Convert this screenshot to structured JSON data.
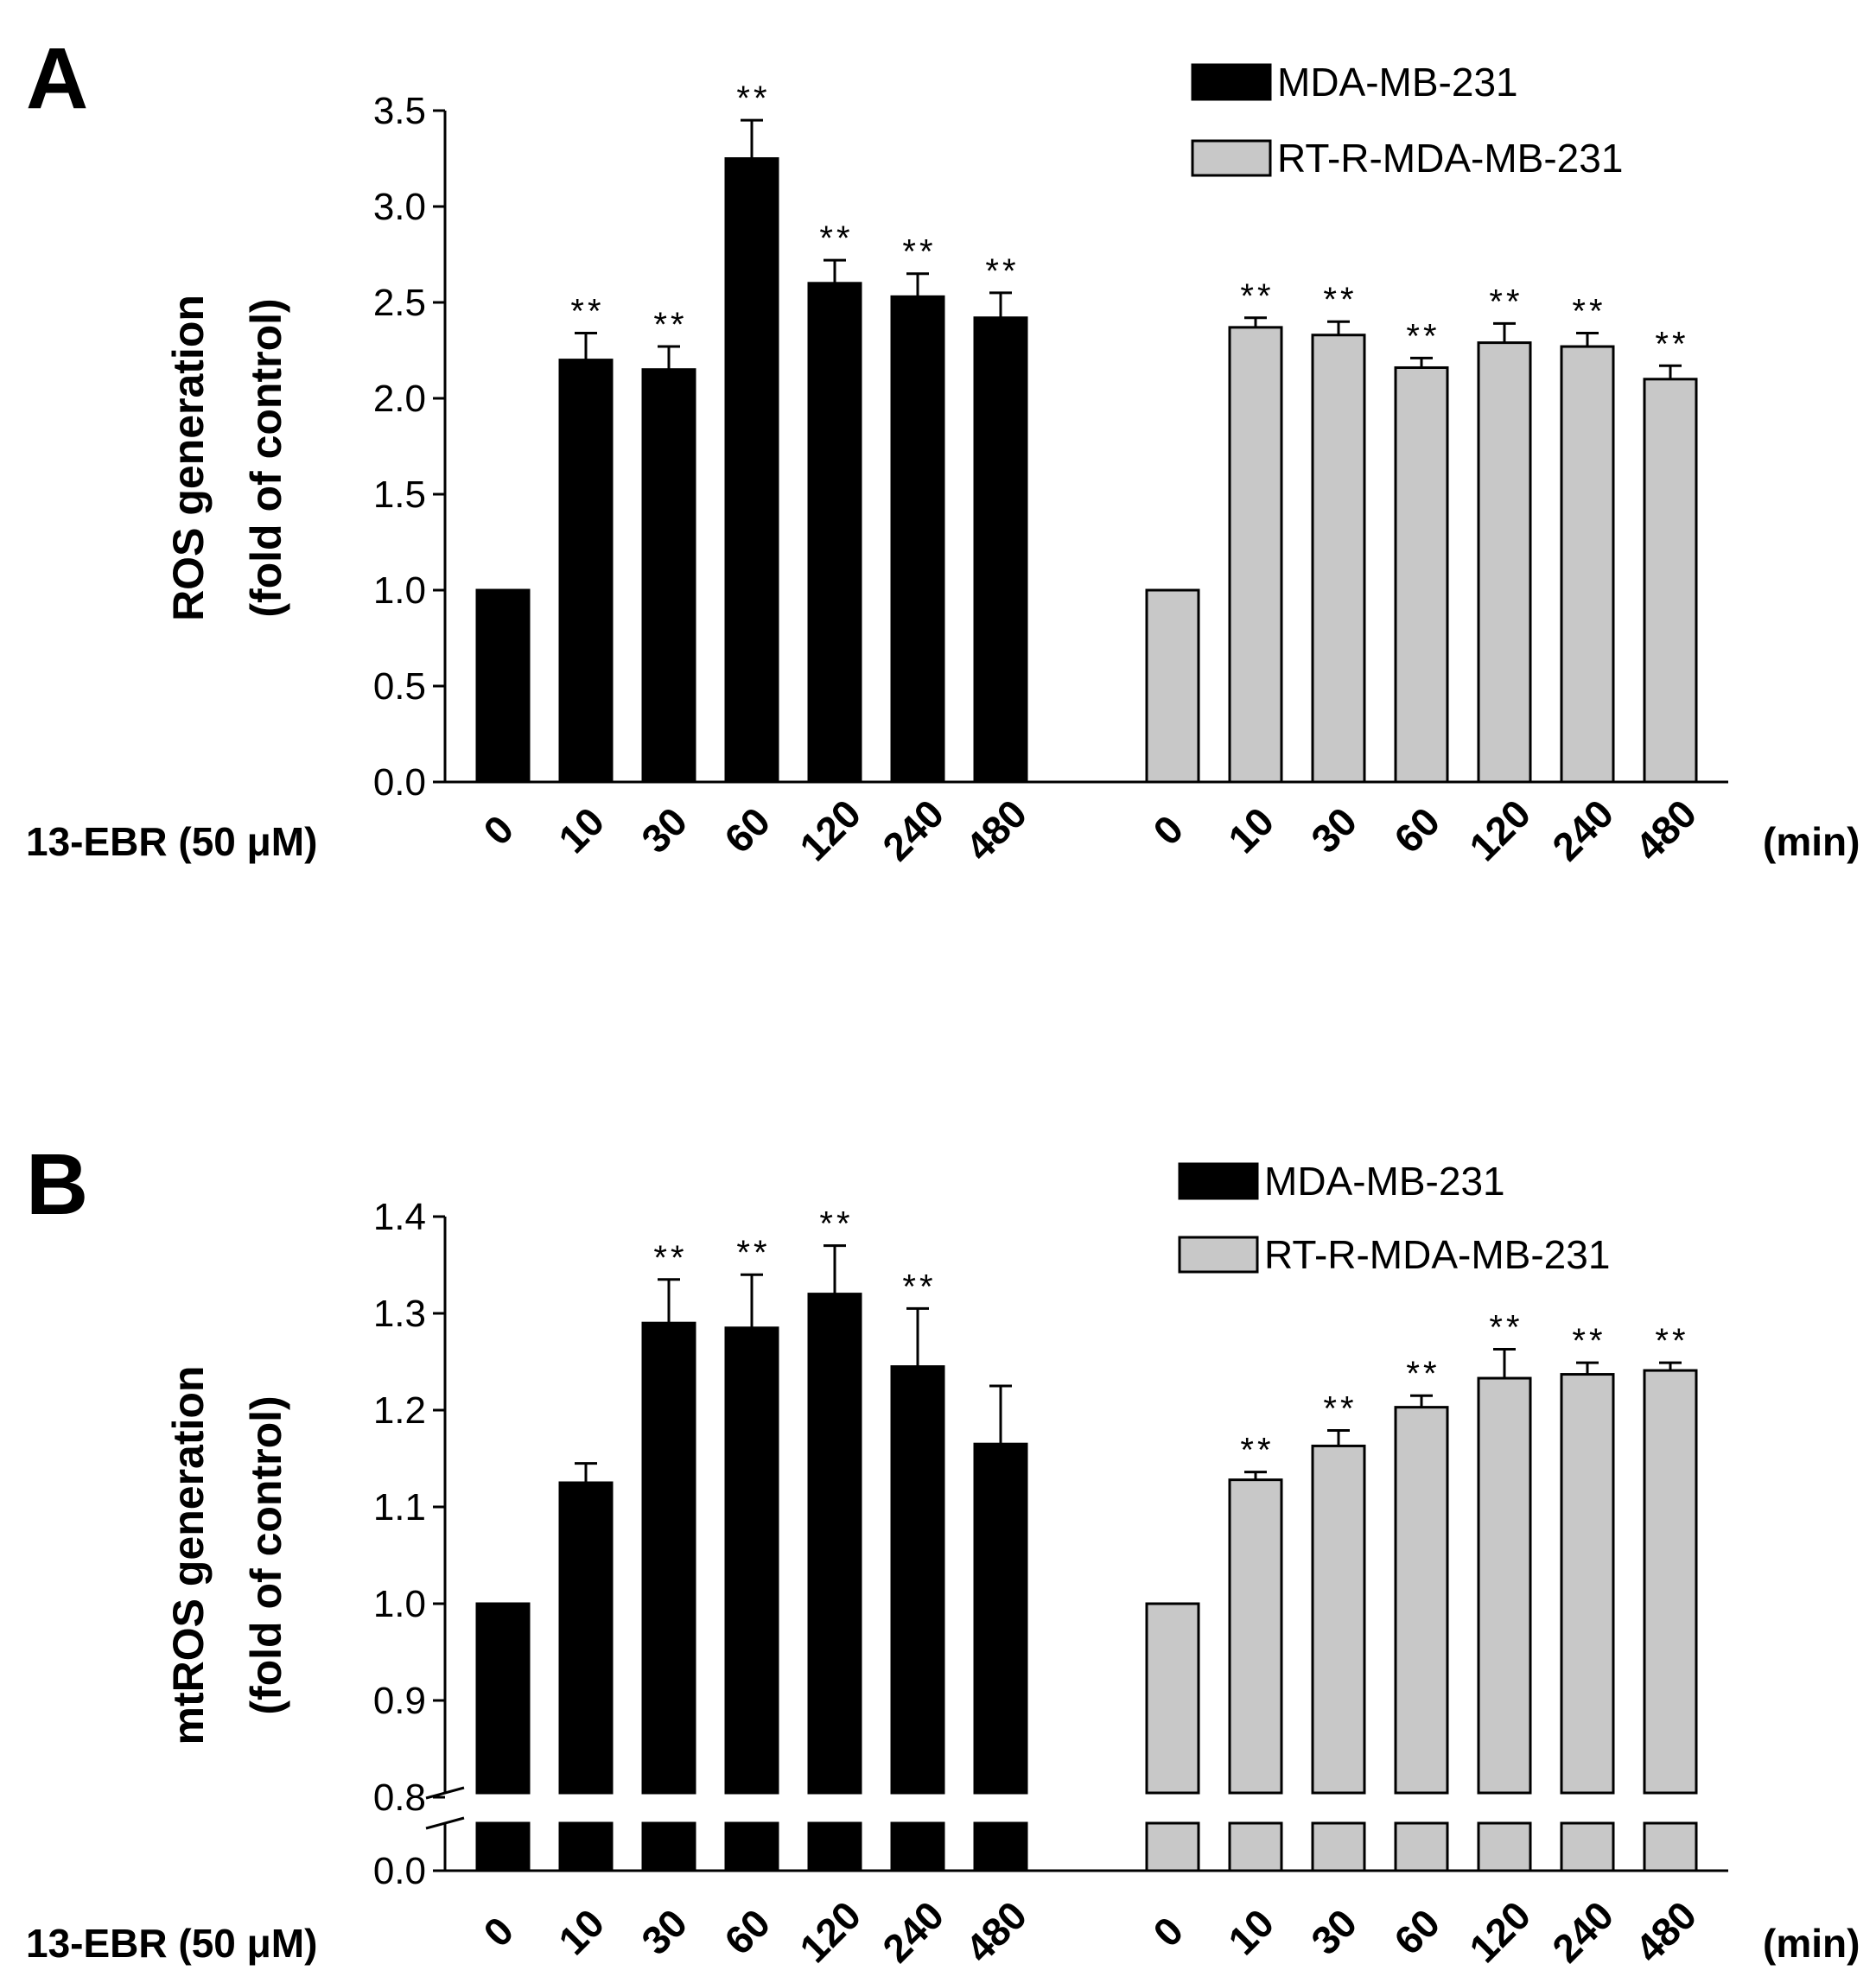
{
  "chart_data": [
    {
      "panel": "A",
      "type": "bar",
      "ylabel_line1": "ROS generation",
      "ylabel_line2": "(fold of control)",
      "treatment_label": "13-EBR  (50  μM)",
      "unit_label": "(min)",
      "yticks": [
        "0.0",
        "0.5",
        "1.0",
        "1.5",
        "2.0",
        "2.5",
        "3.0",
        "3.5"
      ],
      "ylim": [
        0,
        3.5
      ],
      "categories": [
        "0",
        "10",
        "30",
        "60",
        "120",
        "240",
        "480"
      ],
      "series": [
        {
          "name": "MDA-MB-231",
          "color": "#000000",
          "values": [
            1.0,
            2.2,
            2.15,
            3.25,
            2.6,
            2.53,
            2.42
          ],
          "errors": [
            0,
            0.14,
            0.12,
            0.2,
            0.12,
            0.12,
            0.13
          ],
          "sig": [
            "",
            "**",
            "**",
            "**",
            "**",
            "**",
            "**"
          ]
        },
        {
          "name": "RT-R-MDA-MB-231",
          "color": "#c8c8c8",
          "values": [
            1.0,
            2.37,
            2.33,
            2.16,
            2.29,
            2.27,
            2.1
          ],
          "errors": [
            0,
            0.05,
            0.07,
            0.05,
            0.1,
            0.07,
            0.07
          ],
          "sig": [
            "",
            "**",
            "**",
            "**",
            "**",
            "**",
            "**"
          ]
        }
      ]
    },
    {
      "panel": "B",
      "type": "bar",
      "ylabel_line1": "mtROS generation",
      "ylabel_line2": "(fold of control)",
      "treatment_label": "13-EBR  (50  μM)",
      "unit_label": "(min)",
      "yticks": [
        "0.0",
        "0.8",
        "0.9",
        "1.0",
        "1.1",
        "1.2",
        "1.3",
        "1.4"
      ],
      "ylim": [
        0.8,
        1.4
      ],
      "axis_break": true,
      "categories": [
        "0",
        "10",
        "30",
        "60",
        "120",
        "240",
        "480"
      ],
      "series": [
        {
          "name": "MDA-MB-231",
          "color": "#000000",
          "values": [
            1.0,
            1.125,
            1.29,
            1.285,
            1.32,
            1.245,
            1.165
          ],
          "errors": [
            0,
            0.02,
            0.045,
            0.055,
            0.05,
            0.06,
            0.06
          ],
          "sig": [
            "",
            "",
            "**",
            "**",
            "**",
            "**",
            ""
          ]
        },
        {
          "name": "RT-R-MDA-MB-231",
          "color": "#c8c8c8",
          "values": [
            1.0,
            1.128,
            1.163,
            1.203,
            1.233,
            1.237,
            1.241
          ],
          "errors": [
            0,
            0.008,
            0.016,
            0.012,
            0.03,
            0.012,
            0.008
          ],
          "sig": [
            "",
            "**",
            "**",
            "**",
            "**",
            "**",
            "**"
          ]
        }
      ]
    }
  ]
}
